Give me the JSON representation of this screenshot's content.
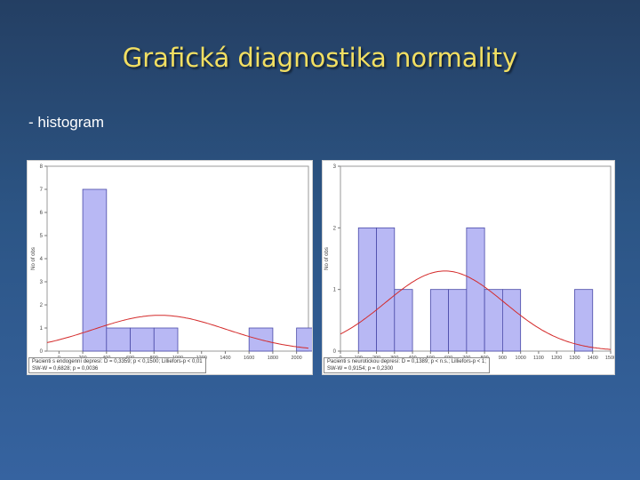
{
  "slide": {
    "title": "Grafická diagnostika normality",
    "subtitle": "- histogram"
  },
  "colors": {
    "bar_fill": "#b8b8f4",
    "bar_stroke": "#4a4aa8",
    "curve": "#d42a2a",
    "title": "#f2df62"
  },
  "chart_data": [
    {
      "type": "bar",
      "subtype": "histogram",
      "ylabel": "No of obs",
      "ylim": [
        0,
        8
      ],
      "yticks": [
        "0",
        "1",
        "2",
        "3",
        "4",
        "5",
        "6",
        "7",
        "8"
      ],
      "xlim": [
        -100,
        2100
      ],
      "bin_edges": [
        200,
        400,
        600,
        800,
        1000,
        1200,
        1400,
        1600,
        1800,
        2000
      ],
      "counts": [
        7,
        1,
        1,
        1,
        0,
        0,
        0,
        1,
        0,
        1
      ],
      "xticks": [
        {
          "value": 0,
          "label": "0"
        },
        {
          "value": 200,
          "label": "200"
        },
        {
          "value": 400,
          "label": "400"
        },
        {
          "value": 600,
          "label": "600"
        },
        {
          "value": 800,
          "label": "800"
        },
        {
          "value": 1000,
          "label": "1000"
        },
        {
          "value": 1200,
          "label": "1200"
        },
        {
          "value": 1400,
          "label": "1400"
        },
        {
          "value": 1600,
          "label": "1600"
        },
        {
          "value": 1800,
          "label": "1800"
        },
        {
          "value": 2000,
          "label": "2000"
        }
      ],
      "normal_curve": {
        "mean": 850,
        "sd": 560,
        "peak": 1.55
      },
      "caption": [
        "Pacienti s endogenní depresí: D = 0,3359; p < 0,1500; Lilliefors-p < 0,01",
        "SW-W = 0,6828; p = 0,0036"
      ]
    },
    {
      "type": "bar",
      "subtype": "histogram",
      "ylabel": "No of obs",
      "ylim": [
        0,
        3
      ],
      "yticks": [
        "0",
        "1",
        "2",
        "3"
      ],
      "xlim": [
        0,
        1500
      ],
      "bin_edges": [
        100,
        200,
        300,
        400,
        500,
        600,
        700,
        800,
        900,
        1000,
        1100,
        1200,
        1300
      ],
      "counts": [
        2,
        2,
        1,
        0,
        1,
        1,
        2,
        1,
        1,
        0,
        0,
        0,
        1
      ],
      "xticks": [
        {
          "value": 0,
          "label": "0"
        },
        {
          "value": 100,
          "label": "100"
        },
        {
          "value": 200,
          "label": "200"
        },
        {
          "value": 300,
          "label": "300"
        },
        {
          "value": 400,
          "label": "400"
        },
        {
          "value": 500,
          "label": "500"
        },
        {
          "value": 600,
          "label": "600"
        },
        {
          "value": 700,
          "label": "700"
        },
        {
          "value": 800,
          "label": "800"
        },
        {
          "value": 900,
          "label": "900"
        },
        {
          "value": 1000,
          "label": "1000"
        },
        {
          "value": 1100,
          "label": "1100"
        },
        {
          "value": 1200,
          "label": "1200"
        },
        {
          "value": 1300,
          "label": "1300"
        },
        {
          "value": 1400,
          "label": "1400"
        },
        {
          "value": 1500,
          "label": "1500"
        }
      ],
      "normal_curve": {
        "mean": 580,
        "sd": 330,
        "peak": 1.3
      },
      "caption": [
        "Pacienti s neurotickou depresí: D = 0,1389; p < n.s.; Lilliefors-p < 1;",
        "SW-W = 0,9154; p = 0,2300"
      ]
    }
  ]
}
